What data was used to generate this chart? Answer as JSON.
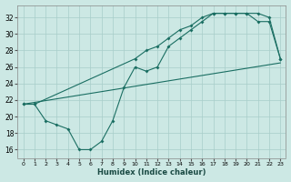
{
  "xlabel": "Humidex (Indice chaleur)",
  "xlim": [
    -0.5,
    23.5
  ],
  "ylim": [
    15,
    33.5
  ],
  "yticks": [
    16,
    18,
    20,
    22,
    24,
    26,
    28,
    30,
    32
  ],
  "xticks": [
    0,
    1,
    2,
    3,
    4,
    5,
    6,
    7,
    8,
    9,
    10,
    11,
    12,
    13,
    14,
    15,
    16,
    17,
    18,
    19,
    20,
    21,
    22,
    23
  ],
  "background_color": "#cce8e4",
  "grid_color": "#a8cdc9",
  "line_color": "#1a6e62",
  "line1_x": [
    0,
    1,
    2,
    3,
    4,
    5,
    6,
    7,
    8,
    9,
    10,
    11,
    12,
    13,
    14,
    15,
    16,
    17,
    18,
    19,
    20,
    21,
    22,
    23
  ],
  "line1_y": [
    21.5,
    21.5,
    19.5,
    19.0,
    18.5,
    16.0,
    16.0,
    17.0,
    19.5,
    23.5,
    26.0,
    25.5,
    26.0,
    28.5,
    29.5,
    30.5,
    31.5,
    32.5,
    32.5,
    32.5,
    32.5,
    31.5,
    31.5,
    27.0
  ],
  "line2_x": [
    0,
    1,
    10,
    11,
    12,
    13,
    14,
    15,
    16,
    17,
    18,
    19,
    20,
    21,
    22,
    23
  ],
  "line2_y": [
    21.5,
    21.5,
    27.0,
    28.0,
    28.5,
    29.5,
    30.5,
    31.0,
    32.0,
    32.5,
    32.5,
    32.5,
    32.5,
    32.5,
    32.0,
    27.0
  ],
  "line3_x": [
    0,
    23
  ],
  "line3_y": [
    21.5,
    26.5
  ]
}
